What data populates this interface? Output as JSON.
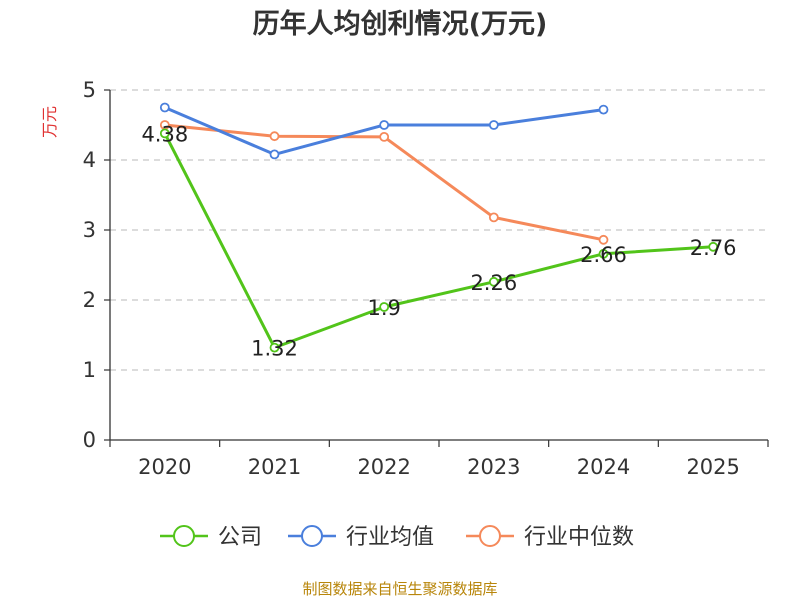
{
  "chart_data": {
    "type": "line",
    "title": "历年人均创利情况(万元)",
    "ylabel": "万元",
    "xlabel": "",
    "categories": [
      "2020",
      "2021",
      "2022",
      "2023",
      "2024",
      "2025"
    ],
    "ylim": [
      0,
      5
    ],
    "yticks": [
      0,
      1,
      2,
      3,
      4,
      5
    ],
    "grid": true,
    "legend_position": "bottom",
    "series": [
      {
        "name": "公司",
        "color": "#52c41a",
        "values": [
          4.38,
          1.32,
          1.9,
          2.26,
          2.66,
          2.76
        ],
        "labels": [
          "4.38",
          "1.32",
          "1.9",
          "2.26",
          "2.66",
          "2.76"
        ]
      },
      {
        "name": "行业均值",
        "color": "#4a7fdc",
        "values": [
          4.75,
          4.08,
          4.5,
          4.5,
          4.72,
          null
        ]
      },
      {
        "name": "行业中位数",
        "color": "#f5895a",
        "values": [
          4.5,
          4.34,
          4.33,
          3.18,
          2.86,
          null
        ]
      }
    ],
    "source": "制图数据来自恒生聚源数据库"
  }
}
